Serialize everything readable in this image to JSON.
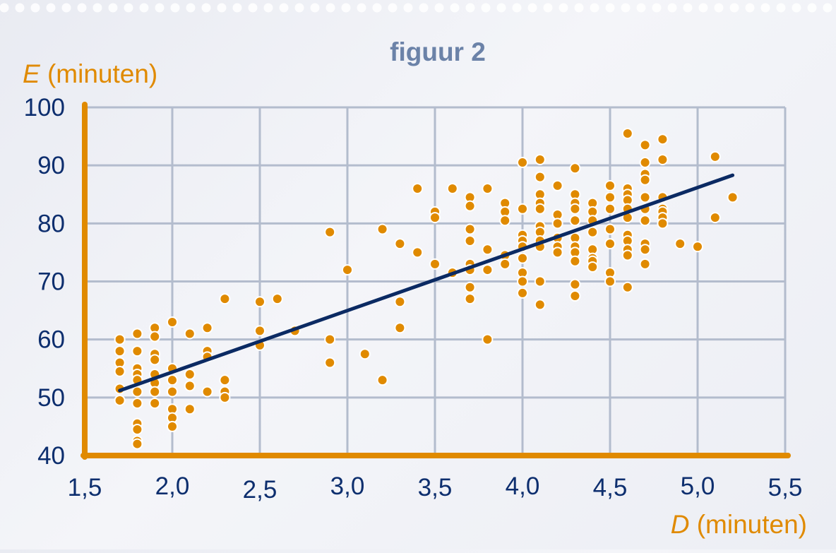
{
  "chart_data": {
    "type": "scatter",
    "title": "figuur 2",
    "ylabel_var": "E",
    "ylabel_unit": " (minuten)",
    "xlabel_var": "D",
    "xlabel_unit": " (minuten)",
    "xlim": [
      1.5,
      5.5
    ],
    "ylim": [
      40,
      100
    ],
    "x_ticks": [
      "1,5",
      "2,0",
      "2,5",
      "3,0",
      "3,5",
      "4,0",
      "4,5",
      "5,0",
      "5,5"
    ],
    "y_ticks": [
      "40",
      "50",
      "60",
      "70",
      "80",
      "90",
      "100"
    ],
    "grid": true,
    "colors": {
      "points": "#e08a00",
      "axis": "#e08a00",
      "line": "#0b2a63",
      "grid": "#b3bccd",
      "title": "#6b82a8"
    },
    "regression_line": {
      "x": [
        1.7,
        5.2
      ],
      "y": [
        51.2,
        88.3
      ]
    },
    "points": [
      [
        1.7,
        60
      ],
      [
        1.7,
        58
      ],
      [
        1.7,
        56
      ],
      [
        1.7,
        54.5
      ],
      [
        1.7,
        51.5
      ],
      [
        1.7,
        49.5
      ],
      [
        1.8,
        61
      ],
      [
        1.8,
        58
      ],
      [
        1.8,
        55
      ],
      [
        1.8,
        54
      ],
      [
        1.8,
        53
      ],
      [
        1.8,
        51
      ],
      [
        1.8,
        49
      ],
      [
        1.8,
        45.5
      ],
      [
        1.8,
        44.5
      ],
      [
        1.8,
        42.5
      ],
      [
        1.8,
        42
      ],
      [
        1.9,
        62
      ],
      [
        1.9,
        60.5
      ],
      [
        1.9,
        57.5
      ],
      [
        1.9,
        56.5
      ],
      [
        1.9,
        54
      ],
      [
        1.9,
        52.5
      ],
      [
        1.9,
        51
      ],
      [
        1.9,
        49
      ],
      [
        2.0,
        63
      ],
      [
        2.0,
        55
      ],
      [
        2.0,
        53
      ],
      [
        2.0,
        51
      ],
      [
        2.0,
        48
      ],
      [
        2.0,
        46.5
      ],
      [
        2.0,
        45
      ],
      [
        2.1,
        61
      ],
      [
        2.1,
        54
      ],
      [
        2.1,
        52
      ],
      [
        2.1,
        48
      ],
      [
        2.2,
        62
      ],
      [
        2.2,
        58
      ],
      [
        2.2,
        57
      ],
      [
        2.2,
        51
      ],
      [
        2.3,
        67
      ],
      [
        2.3,
        53
      ],
      [
        2.3,
        51
      ],
      [
        2.3,
        50
      ],
      [
        2.5,
        66.5
      ],
      [
        2.5,
        61.5
      ],
      [
        2.5,
        59
      ],
      [
        2.6,
        67
      ],
      [
        2.7,
        61.5
      ],
      [
        2.9,
        78.5
      ],
      [
        2.9,
        60
      ],
      [
        2.9,
        56
      ],
      [
        3.0,
        72
      ],
      [
        3.1,
        57.5
      ],
      [
        3.2,
        79
      ],
      [
        3.2,
        53
      ],
      [
        3.3,
        76.5
      ],
      [
        3.3,
        66.5
      ],
      [
        3.3,
        62
      ],
      [
        3.4,
        86
      ],
      [
        3.4,
        75
      ],
      [
        3.5,
        82
      ],
      [
        3.5,
        81
      ],
      [
        3.5,
        73
      ],
      [
        3.6,
        86
      ],
      [
        3.6,
        71.5
      ],
      [
        3.7,
        84.5
      ],
      [
        3.7,
        83
      ],
      [
        3.7,
        79
      ],
      [
        3.7,
        77
      ],
      [
        3.7,
        73
      ],
      [
        3.7,
        72
      ],
      [
        3.7,
        69
      ],
      [
        3.7,
        67
      ],
      [
        3.8,
        86
      ],
      [
        3.8,
        75.5
      ],
      [
        3.8,
        72
      ],
      [
        3.8,
        60
      ],
      [
        3.9,
        83.5
      ],
      [
        3.9,
        82
      ],
      [
        3.9,
        80.5
      ],
      [
        3.9,
        74.5
      ],
      [
        3.9,
        73
      ],
      [
        4.0,
        90.5
      ],
      [
        4.0,
        82.5
      ],
      [
        4.0,
        78
      ],
      [
        4.0,
        77
      ],
      [
        4.0,
        76
      ],
      [
        4.0,
        74
      ],
      [
        4.0,
        71.5
      ],
      [
        4.0,
        70
      ],
      [
        4.0,
        68
      ],
      [
        4.1,
        91
      ],
      [
        4.1,
        88
      ],
      [
        4.1,
        85
      ],
      [
        4.1,
        83.5
      ],
      [
        4.1,
        82.5
      ],
      [
        4.1,
        79.5
      ],
      [
        4.1,
        78.5
      ],
      [
        4.1,
        77
      ],
      [
        4.1,
        76
      ],
      [
        4.1,
        70
      ],
      [
        4.1,
        66
      ],
      [
        4.2,
        86.5
      ],
      [
        4.2,
        81.5
      ],
      [
        4.2,
        80
      ],
      [
        4.2,
        77.5
      ],
      [
        4.2,
        76
      ],
      [
        4.2,
        75
      ],
      [
        4.3,
        89.5
      ],
      [
        4.3,
        85
      ],
      [
        4.3,
        83.5
      ],
      [
        4.3,
        82.5
      ],
      [
        4.3,
        80.5
      ],
      [
        4.3,
        77.5
      ],
      [
        4.3,
        76
      ],
      [
        4.3,
        75
      ],
      [
        4.3,
        73.5
      ],
      [
        4.3,
        69.5
      ],
      [
        4.3,
        67.5
      ],
      [
        4.4,
        83.5
      ],
      [
        4.4,
        82
      ],
      [
        4.4,
        80.5
      ],
      [
        4.4,
        78.5
      ],
      [
        4.4,
        75.5
      ],
      [
        4.4,
        74
      ],
      [
        4.4,
        73.5
      ],
      [
        4.4,
        72.5
      ],
      [
        4.5,
        86.5
      ],
      [
        4.5,
        84.5
      ],
      [
        4.5,
        82.5
      ],
      [
        4.5,
        79
      ],
      [
        4.5,
        76.5
      ],
      [
        4.5,
        71.5
      ],
      [
        4.5,
        70
      ],
      [
        4.6,
        95.5
      ],
      [
        4.6,
        86
      ],
      [
        4.6,
        85
      ],
      [
        4.6,
        84
      ],
      [
        4.6,
        82.5
      ],
      [
        4.6,
        81
      ],
      [
        4.6,
        78
      ],
      [
        4.6,
        77
      ],
      [
        4.6,
        75.5
      ],
      [
        4.6,
        74.5
      ],
      [
        4.6,
        69
      ],
      [
        4.7,
        93.5
      ],
      [
        4.7,
        90.5
      ],
      [
        4.7,
        88.5
      ],
      [
        4.7,
        87.5
      ],
      [
        4.7,
        84.5
      ],
      [
        4.7,
        82.5
      ],
      [
        4.7,
        80.5
      ],
      [
        4.7,
        76.5
      ],
      [
        4.7,
        75.5
      ],
      [
        4.7,
        73
      ],
      [
        4.8,
        94.5
      ],
      [
        4.8,
        91
      ],
      [
        4.8,
        84.5
      ],
      [
        4.8,
        82.5
      ],
      [
        4.8,
        82
      ],
      [
        4.8,
        81
      ],
      [
        4.8,
        80
      ],
      [
        4.9,
        76.5
      ],
      [
        5.0,
        76
      ],
      [
        5.1,
        91.5
      ],
      [
        5.1,
        81
      ],
      [
        5.2,
        84.5
      ]
    ]
  }
}
